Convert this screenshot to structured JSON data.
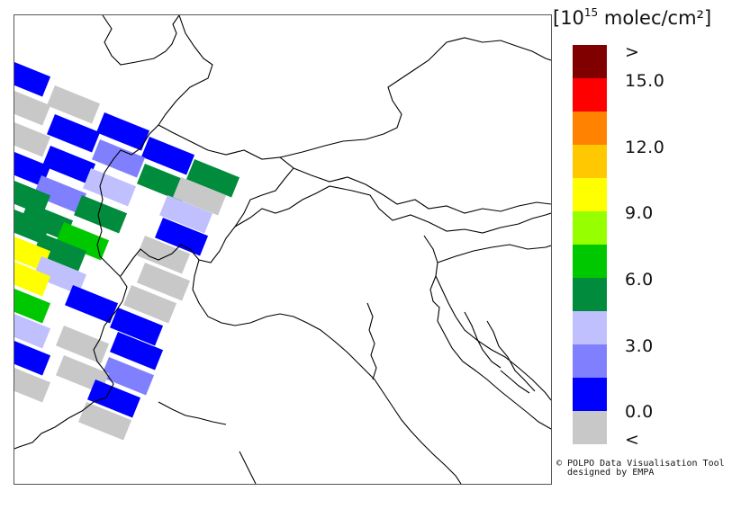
{
  "legend": {
    "title_prefix": "[10",
    "title_exp": "15",
    "title_suffix": " molec/cm²]",
    "colors": [
      "#c8c8c8",
      "#0000ff",
      "#8080ff",
      "#c0c0ff",
      "#008c3c",
      "#00c800",
      "#96ff00",
      "#ffff00",
      "#ffc800",
      "#ff8200",
      "#ff0000",
      "#800000"
    ],
    "labels": {
      "over": ">",
      "v15": "15.0",
      "v12": "12.0",
      "v9": "9.0",
      "v6": "6.0",
      "v3": "3.0",
      "v0": "0.0",
      "under": "<"
    }
  },
  "footer": {
    "line1": "© POLPO Data Visualisation Tool",
    "line2": "  designed by EMPA"
  }
}
